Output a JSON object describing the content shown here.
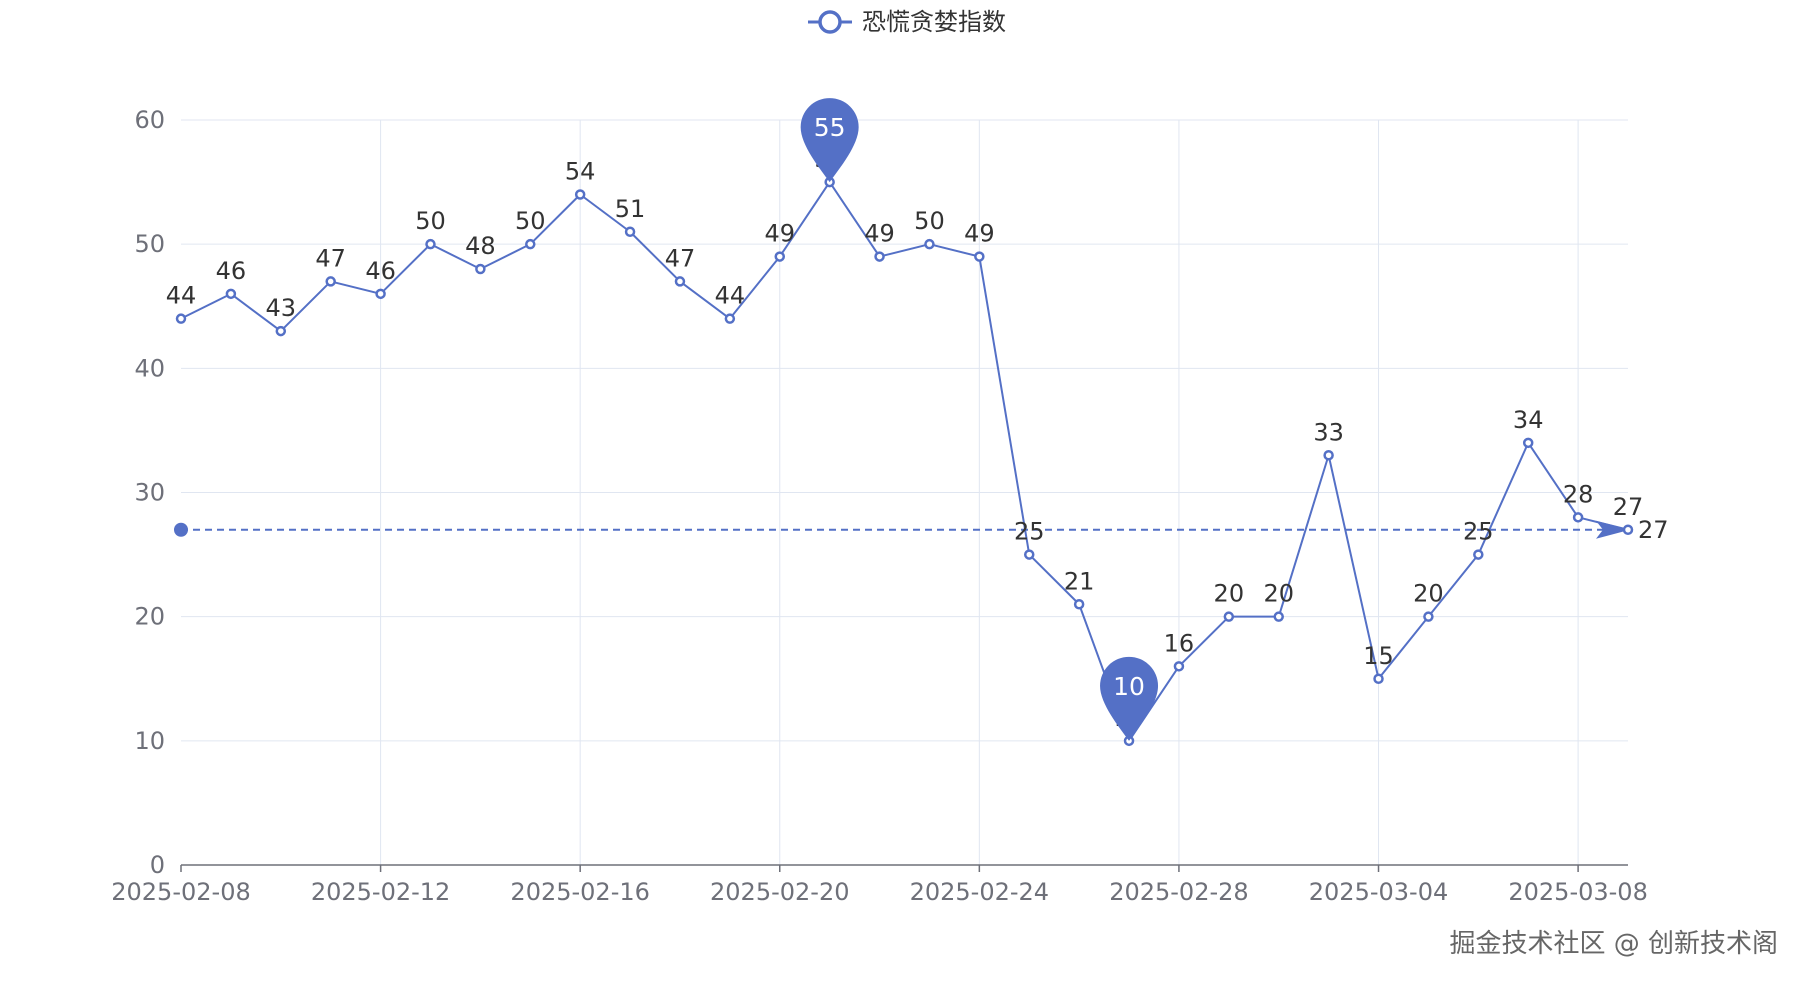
{
  "chart_data": {
    "type": "line",
    "legend": {
      "label": "恐慌贪婪指数",
      "placement": "top-center"
    },
    "x": [
      "2025-02-08",
      "2025-02-09",
      "2025-02-10",
      "2025-02-11",
      "2025-02-12",
      "2025-02-13",
      "2025-02-14",
      "2025-02-15",
      "2025-02-16",
      "2025-02-17",
      "2025-02-18",
      "2025-02-19",
      "2025-02-20",
      "2025-02-21",
      "2025-02-22",
      "2025-02-23",
      "2025-02-24",
      "2025-02-25",
      "2025-02-26",
      "2025-02-27",
      "2025-02-28",
      "2025-03-01",
      "2025-03-02",
      "2025-03-03",
      "2025-03-04",
      "2025-03-05",
      "2025-03-06",
      "2025-03-07",
      "2025-03-08",
      "2025-03-09"
    ],
    "x_tick_labels": [
      "2025-02-08",
      "2025-02-12",
      "2025-02-16",
      "2025-02-20",
      "2025-02-24",
      "2025-02-28",
      "2025-03-04",
      "2025-03-08"
    ],
    "series": [
      {
        "name": "恐慌贪婪指数",
        "values": [
          44,
          46,
          43,
          47,
          46,
          50,
          48,
          50,
          54,
          51,
          47,
          44,
          49,
          55,
          49,
          50,
          49,
          25,
          21,
          10,
          16,
          20,
          20,
          33,
          15,
          20,
          25,
          34,
          28,
          27
        ]
      }
    ],
    "ylim": [
      0,
      60
    ],
    "y_ticks": [
      0,
      10,
      20,
      30,
      40,
      50,
      60
    ],
    "grid": true,
    "mark_points": [
      {
        "type": "max",
        "label": "55",
        "x": "2025-02-21",
        "value": 55
      },
      {
        "type": "min",
        "label": "10",
        "x": "2025-02-27",
        "value": 10
      }
    ],
    "mark_line": {
      "value": 27,
      "label": "27"
    },
    "color": "#5470c6"
  },
  "watermark": "掘金技术社区 @ 创新技术阁"
}
